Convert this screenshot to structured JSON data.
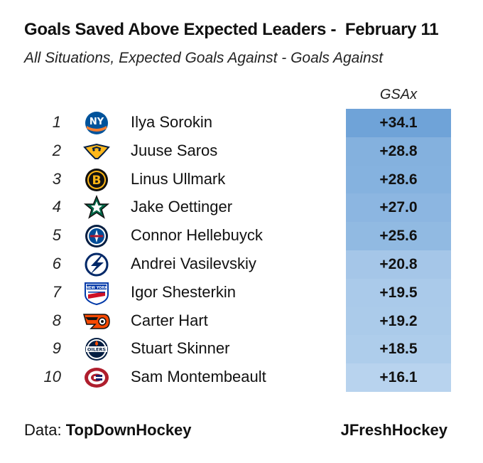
{
  "title": "Goals Saved Above Expected Leaders -  February 11",
  "subtitle": "All Situations, Expected Goals Against - Goals Against",
  "column_header": "GSAx",
  "rows": [
    {
      "rank": "1",
      "team_icon": "islanders-logo-icon",
      "name": "Ilya Sorokin",
      "gsax_label": "+34.1",
      "gsax": 34.1
    },
    {
      "rank": "2",
      "team_icon": "predators-logo-icon",
      "name": "Juuse Saros",
      "gsax_label": "+28.8",
      "gsax": 28.8
    },
    {
      "rank": "3",
      "team_icon": "bruins-logo-icon",
      "name": "Linus Ullmark",
      "gsax_label": "+28.6",
      "gsax": 28.6
    },
    {
      "rank": "4",
      "team_icon": "stars-logo-icon",
      "name": "Jake Oettinger",
      "gsax_label": "+27.0",
      "gsax": 27.0
    },
    {
      "rank": "5",
      "team_icon": "jets-logo-icon",
      "name": "Connor Hellebuyck",
      "gsax_label": "+25.6",
      "gsax": 25.6
    },
    {
      "rank": "6",
      "team_icon": "lightning-logo-icon",
      "name": "Andrei Vasilevskiy",
      "gsax_label": "+20.8",
      "gsax": 20.8
    },
    {
      "rank": "7",
      "team_icon": "rangers-logo-icon",
      "name": "Igor Shesterkin",
      "gsax_label": "+19.5",
      "gsax": 19.5
    },
    {
      "rank": "8",
      "team_icon": "flyers-logo-icon",
      "name": "Carter Hart",
      "gsax_label": "+19.2",
      "gsax": 19.2
    },
    {
      "rank": "9",
      "team_icon": "oilers-logo-icon",
      "name": "Stuart Skinner",
      "gsax_label": "+18.5",
      "gsax": 18.5
    },
    {
      "rank": "10",
      "team_icon": "canadiens-logo-icon",
      "name": "Sam Montembeault",
      "gsax_label": "+16.1",
      "gsax": 16.1
    }
  ],
  "logo_text": {
    "islanders": "NY",
    "rangers": "NEW YORK",
    "oilers": "OILERS"
  },
  "colors": {
    "heat_high": "#6fa3d8",
    "heat_low": "#b8d3ee"
  },
  "footer": {
    "data_label": "Data: ",
    "data_source": "TopDownHockey",
    "credit": "JFreshHockey"
  }
}
